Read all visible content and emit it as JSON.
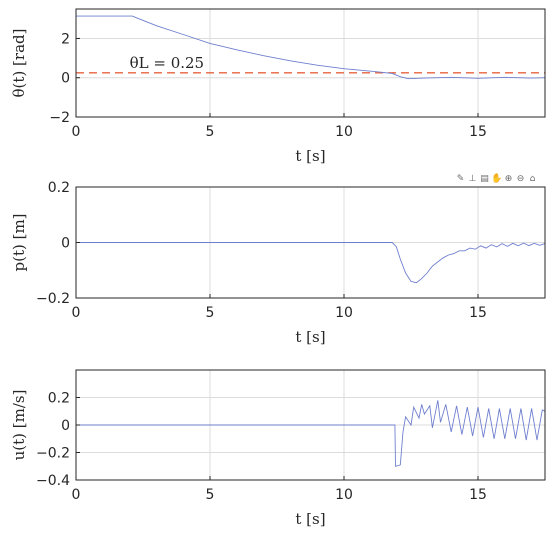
{
  "toolbar": [
    {
      "name": "brush-icon",
      "glyph": "✎"
    },
    {
      "name": "data-tip-icon",
      "glyph": "⊥"
    },
    {
      "name": "export-icon",
      "glyph": "▤"
    },
    {
      "name": "pan-icon",
      "glyph": "✋"
    },
    {
      "name": "zoom-in-icon",
      "glyph": "⊕"
    },
    {
      "name": "zoom-out-icon",
      "glyph": "⊖"
    },
    {
      "name": "home-icon",
      "glyph": "⌂"
    }
  ],
  "chart_data": [
    {
      "type": "line",
      "xlabel": "t [s]",
      "ylabel": "θ(t) [rad]",
      "xlim": [
        0,
        17.5
      ],
      "ylim": [
        -2,
        3.5
      ],
      "xticks": [
        0,
        5,
        10,
        15
      ],
      "yticks": [
        -2,
        0,
        2
      ],
      "grid": true,
      "color": "#6f7fcf",
      "reference": {
        "y": 0.25,
        "label": "θL = 0.25",
        "color": "#e8633f",
        "style": "dashed"
      },
      "series": [
        {
          "x": [
            0,
            2.1,
            2.2,
            3,
            4,
            5,
            6,
            7,
            8,
            9,
            10,
            11,
            11.8,
            12.1,
            12.4,
            13,
            14,
            15,
            16,
            17,
            17.5
          ],
          "y": [
            3.14,
            3.14,
            3.08,
            2.65,
            2.2,
            1.75,
            1.42,
            1.12,
            0.86,
            0.64,
            0.46,
            0.33,
            0.22,
            0.05,
            -0.05,
            -0.02,
            0.02,
            -0.03,
            0.02,
            -0.02,
            0.0
          ]
        }
      ]
    },
    {
      "type": "line",
      "xlabel": "t [s]",
      "ylabel": "p(t) [m]",
      "xlim": [
        0,
        17.5
      ],
      "ylim": [
        -0.2,
        0.2
      ],
      "xticks": [
        0,
        5,
        10,
        15
      ],
      "yticks": [
        -0.2,
        0,
        0.2
      ],
      "grid": true,
      "color": "#6f7fcf",
      "series": [
        {
          "x": [
            0,
            11.8,
            11.95,
            12.1,
            12.3,
            12.5,
            12.7,
            12.9,
            13.1,
            13.3,
            13.5,
            13.7,
            13.9,
            14.1,
            14.3,
            14.5,
            14.7,
            14.9,
            15.1,
            15.3,
            15.5,
            15.7,
            15.9,
            16.1,
            16.3,
            16.5,
            16.7,
            16.9,
            17.1,
            17.3,
            17.5
          ],
          "y": [
            0,
            0,
            -0.015,
            -0.06,
            -0.11,
            -0.14,
            -0.145,
            -0.13,
            -0.11,
            -0.085,
            -0.07,
            -0.055,
            -0.045,
            -0.04,
            -0.03,
            -0.03,
            -0.02,
            -0.024,
            -0.012,
            -0.02,
            -0.008,
            -0.016,
            -0.004,
            -0.014,
            -0.003,
            -0.012,
            -0.002,
            -0.011,
            -0.003,
            -0.01,
            -0.004
          ]
        }
      ]
    },
    {
      "type": "line",
      "xlabel": "t [s]",
      "ylabel": "u(t) [m/s]",
      "xlim": [
        0,
        17.5
      ],
      "ylim": [
        -0.4,
        0.4
      ],
      "xticks": [
        0,
        5,
        10,
        15
      ],
      "yticks": [
        -0.4,
        -0.2,
        0,
        0.2
      ],
      "grid": true,
      "color": "#6f7fcf",
      "series": [
        {
          "x": [
            0,
            11.9,
            11.92,
            12.1,
            12.2,
            12.3,
            12.5,
            12.6,
            12.8,
            12.9,
            13.0,
            13.2,
            13.3,
            13.5,
            13.6,
            13.8,
            14.0,
            14.2,
            14.4,
            14.6,
            14.8,
            15.0,
            15.2,
            15.4,
            15.6,
            15.8,
            16.0,
            16.2,
            16.4,
            16.6,
            16.8,
            17.0,
            17.2,
            17.4,
            17.5
          ],
          "y": [
            0,
            0,
            -0.3,
            -0.29,
            -0.05,
            0.06,
            0.0,
            0.13,
            0.05,
            0.15,
            0.08,
            0.14,
            -0.02,
            0.18,
            0.02,
            0.15,
            -0.05,
            0.14,
            -0.07,
            0.13,
            -0.08,
            0.13,
            -0.09,
            0.12,
            -0.1,
            0.12,
            -0.1,
            0.12,
            -0.1,
            0.12,
            -0.11,
            0.12,
            -0.11,
            0.11,
            0.1
          ]
        }
      ]
    }
  ]
}
